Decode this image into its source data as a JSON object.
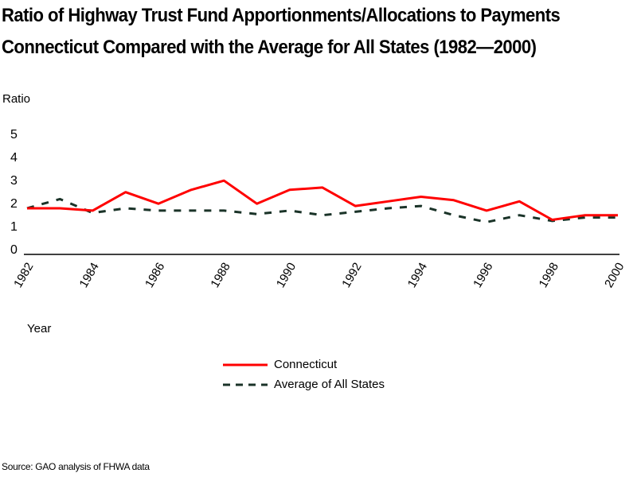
{
  "chart_data": {
    "type": "line",
    "title": "Ratio of Highway Trust Fund Apportionments/Allocations to Payments",
    "subtitle": "Connecticut Compared with the Average for All States (1982—2000)",
    "xlabel": "Year",
    "ylabel": "Ratio",
    "ylim": [
      0,
      5
    ],
    "yticks": [
      "0",
      "1",
      "2",
      "3",
      "4",
      "5"
    ],
    "x": [
      1982,
      1983,
      1984,
      1985,
      1986,
      1987,
      1988,
      1989,
      1990,
      1991,
      1992,
      1993,
      1994,
      1995,
      1996,
      1997,
      1998,
      1999,
      2000
    ],
    "xticks": [
      "1982",
      "1984",
      "1986",
      "1988",
      "1990",
      "1992",
      "1994",
      "1996",
      "1998",
      "2000"
    ],
    "grid": false,
    "legend_position": "bottom-center",
    "series": [
      {
        "name": "Connecticut",
        "style": "solid",
        "color": "#ff0000",
        "values": [
          2.0,
          2.0,
          1.9,
          2.7,
          2.2,
          2.8,
          3.2,
          2.2,
          2.8,
          2.9,
          2.1,
          2.3,
          2.5,
          2.35,
          1.9,
          2.3,
          1.5,
          1.7,
          1.7
        ]
      },
      {
        "name": "Average of All States",
        "style": "dashed",
        "color": "#1a3328",
        "values": [
          2.0,
          2.4,
          1.8,
          2.0,
          1.9,
          1.9,
          1.9,
          1.75,
          1.9,
          1.7,
          1.85,
          2.0,
          2.1,
          1.7,
          1.4,
          1.7,
          1.45,
          1.6,
          1.6
        ]
      }
    ],
    "source": "Source: GAO analysis of FHWA data"
  }
}
